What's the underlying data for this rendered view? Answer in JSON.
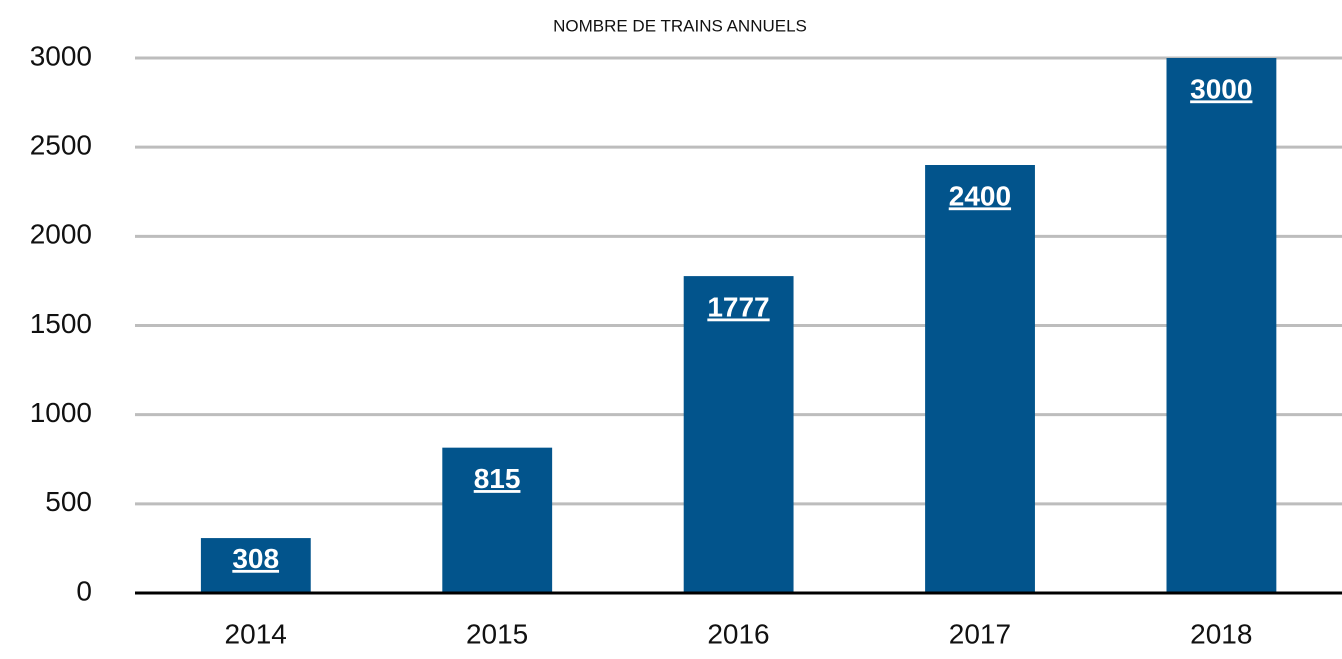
{
  "chart_data": {
    "type": "bar",
    "title": "NOMBRE DE TRAINS ANNUELS",
    "categories": [
      "2014",
      "2015",
      "2016",
      "2017",
      "2018"
    ],
    "values": [
      308,
      815,
      1777,
      2400,
      3000
    ],
    "color": "#02548c",
    "ylim": [
      0,
      3000
    ],
    "yticks": [
      0,
      500,
      1000,
      1500,
      2000,
      2500,
      3000
    ],
    "grid": true
  }
}
